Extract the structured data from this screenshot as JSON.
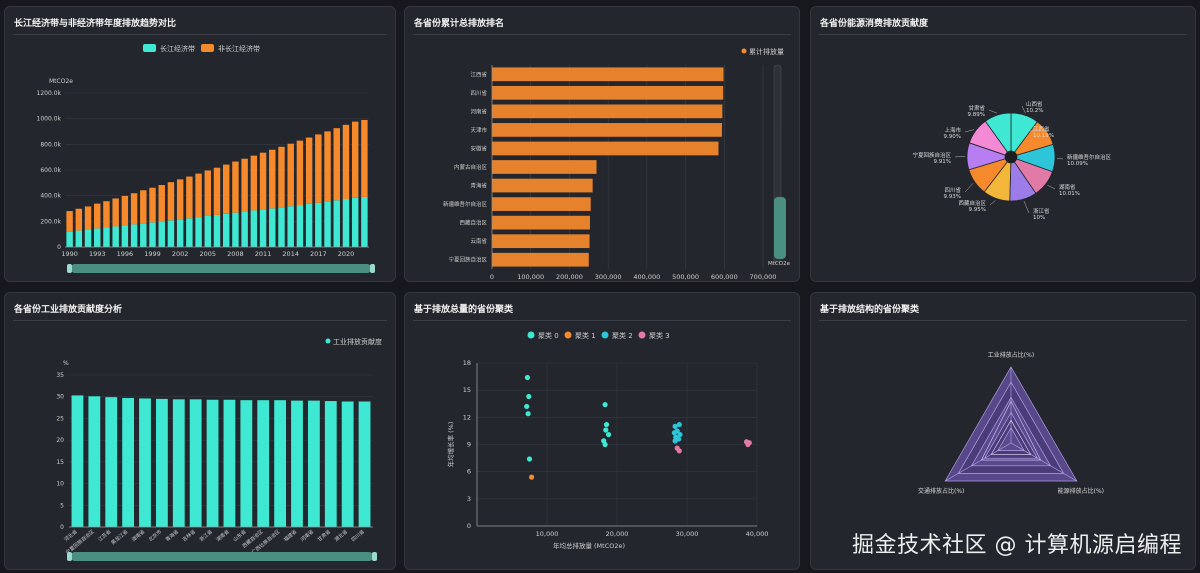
{
  "panels": {
    "p1": {
      "title": "长江经济带与非经济带年度排放趋势对比"
    },
    "p2": {
      "title": "各省份累计总排放排名"
    },
    "p3": {
      "title": "各省份能源消费排放贡献度"
    },
    "p4": {
      "title": "各省份工业排放贡献度分析"
    },
    "p5": {
      "title": "基于排放总量的省份聚类"
    },
    "p6": {
      "title": "基于排放结构的省份聚类"
    }
  },
  "watermark": "掘金技术社区 @ 计算机源启编程",
  "colors": {
    "teal": "#3fe8d2",
    "orange": "#f5892c",
    "cyan": "#2cc6d8",
    "pink": "#e27aa8",
    "purple": "#9b7ce8",
    "panel_bg": "#23262c"
  },
  "chart_data": [
    {
      "id": "p1",
      "type": "bar",
      "stacked": true,
      "ylabel": "MtCO2e",
      "ylim": [
        0,
        1200000
      ],
      "yticks": [
        "0",
        "200.0k",
        "400.0k",
        "600.0k",
        "800.0k",
        "1000.0k",
        "1200.0k"
      ],
      "xticks": [
        "1990",
        "1993",
        "1996",
        "1999",
        "2002",
        "2005",
        "2008",
        "2011",
        "2014",
        "2017",
        "2020"
      ],
      "categories": [
        "1990",
        "1991",
        "1992",
        "1993",
        "1994",
        "1995",
        "1996",
        "1997",
        "1998",
        "1999",
        "2000",
        "2001",
        "2002",
        "2003",
        "2004",
        "2005",
        "2006",
        "2007",
        "2008",
        "2009",
        "2010",
        "2011",
        "2012",
        "2013",
        "2014",
        "2015",
        "2016",
        "2017",
        "2018",
        "2019",
        "2020",
        "2021",
        "2022"
      ],
      "legend": [
        "长江经济带",
        "非长江经济带"
      ],
      "series": [
        {
          "name": "长江经济带",
          "color": "#3fe8d2",
          "values": [
            120000,
            128000,
            136000,
            145000,
            152000,
            160000,
            168000,
            176000,
            185000,
            192000,
            200000,
            208000,
            216000,
            224000,
            233000,
            242000,
            250000,
            259000,
            268000,
            276000,
            285000,
            293000,
            301000,
            309000,
            318000,
            327000,
            336000,
            345000,
            354000,
            364000,
            374000,
            384000,
            390000
          ]
        },
        {
          "name": "非长江经济带",
          "color": "#f5892c",
          "values": [
            160000,
            170000,
            180000,
            193000,
            205000,
            218000,
            230000,
            243000,
            257000,
            270000,
            283000,
            297000,
            311000,
            325000,
            339000,
            354000,
            368000,
            383000,
            398000,
            412000,
            427000,
            442000,
            457000,
            472000,
            487000,
            502000,
            517000,
            532000,
            547000,
            562000,
            578000,
            593000,
            600000
          ]
        }
      ],
      "legend_position": "top-center"
    },
    {
      "id": "p2",
      "type": "bar",
      "orientation": "horizontal",
      "legend": [
        "累计排放量"
      ],
      "xticks": [
        "0",
        "100,000",
        "200,000",
        "300,000",
        "400,000",
        "500,000",
        "600,000",
        "700,000"
      ],
      "xlim": [
        0,
        700000
      ],
      "xunit": "MtCO2e",
      "categories": [
        "江西省",
        "四川省",
        "河南省",
        "天津市",
        "安徽省",
        "内蒙古自治区",
        "青海省",
        "新疆维吾尔自治区",
        "西藏自治区",
        "云南省",
        "宁夏回族自治区"
      ],
      "values": [
        598000,
        597000,
        595000,
        594000,
        585000,
        270000,
        260000,
        255000,
        253000,
        252000,
        250000
      ],
      "color": "#f5892c"
    },
    {
      "id": "p3",
      "type": "pie",
      "rose": true,
      "labels": [
        "山西省",
        "江西省",
        "新疆维吾尔自治区",
        "湖南省",
        "浙江省",
        "西藏自治区",
        "四川省",
        "宁夏回族自治区",
        "上海市",
        "甘肃省"
      ],
      "percent_labels": [
        "10.2%",
        "10.19%",
        "10.09%",
        "10.01%",
        "10%",
        "9.95%",
        "9.93%",
        "9.91%",
        "9.90%",
        "9.89%"
      ],
      "values": [
        10.2,
        10.19,
        10.09,
        10.01,
        10,
        9.95,
        9.93,
        9.91,
        9.9,
        9.89
      ],
      "slice_colors": [
        "#3fe8d2",
        "#f5892c",
        "#2cc6d8",
        "#e27aa8",
        "#9b7ce8",
        "#f2b63a",
        "#f5892c",
        "#b67ef0",
        "#f48ad6",
        "#3fe8d2"
      ]
    },
    {
      "id": "p4",
      "type": "bar",
      "ylabel": "%",
      "ylim": [
        0,
        35
      ],
      "yticks": [
        "0",
        "5",
        "10",
        "15",
        "20",
        "25",
        "30",
        "35"
      ],
      "legend": [
        "工业排放贡献度"
      ],
      "categories": [
        "河北省",
        "宁夏回族自治区",
        "江苏省",
        "黑龙江省",
        "湖南省",
        "北京市",
        "青海省",
        "吉林省",
        "浙江省",
        "湖南省",
        "山东省",
        "西藏自治区",
        "广西壮族自治区",
        "福建省",
        "河南省",
        "甘肃省",
        "湖北省",
        "四川省"
      ],
      "values": [
        30.3,
        30.1,
        29.9,
        29.7,
        29.6,
        29.5,
        29.4,
        29.4,
        29.3,
        29.3,
        29.2,
        29.2,
        29.2,
        29.1,
        29.1,
        29.0,
        28.9,
        28.9
      ],
      "color": "#3fe8d2"
    },
    {
      "id": "p5",
      "type": "scatter",
      "xlabel": "年均总排放量 (MtCO2e)",
      "ylabel": "年均增长率 (%)",
      "xlim": [
        0,
        40000
      ],
      "ylim": [
        0,
        18
      ],
      "xticks": [
        "10,000",
        "20,000",
        "30,000",
        "40,000"
      ],
      "yticks": [
        "0",
        "3",
        "6",
        "9",
        "12",
        "15",
        "18"
      ],
      "series": [
        {
          "name": "聚类 0",
          "color": "#3fe8d2",
          "points": [
            [
              7200,
              16.4
            ],
            [
              7400,
              14.3
            ],
            [
              7100,
              13.2
            ],
            [
              7300,
              12.4
            ],
            [
              7500,
              7.4
            ],
            [
              18300,
              13.4
            ],
            [
              18500,
              11.2
            ],
            [
              18400,
              10.6
            ],
            [
              18800,
              10.1
            ],
            [
              18100,
              9.4
            ],
            [
              18300,
              9.0
            ]
          ]
        },
        {
          "name": "聚类 1",
          "color": "#f5892c",
          "points": [
            [
              7800,
              5.4
            ]
          ]
        },
        {
          "name": "聚类 2",
          "color": "#2cc6d8",
          "points": [
            [
              28300,
              11.0
            ],
            [
              28900,
              11.2
            ],
            [
              28600,
              10.5
            ],
            [
              28200,
              10.3
            ],
            [
              29000,
              10.1
            ],
            [
              28400,
              9.8
            ],
            [
              28800,
              9.6
            ],
            [
              28300,
              9.4
            ]
          ]
        },
        {
          "name": "聚类 3",
          "color": "#e27aa8",
          "points": [
            [
              28600,
              8.6
            ],
            [
              28900,
              8.3
            ],
            [
              38500,
              9.3
            ],
            [
              38900,
              9.2
            ],
            [
              38700,
              9.0
            ]
          ]
        }
      ],
      "legend_position": "top-center"
    },
    {
      "id": "p6",
      "type": "radar",
      "indicators": [
        "工业排放占比(%)",
        "能源排放占比(%)",
        "交通排放占比(%)"
      ],
      "color": "#9b7ce8"
    }
  ]
}
